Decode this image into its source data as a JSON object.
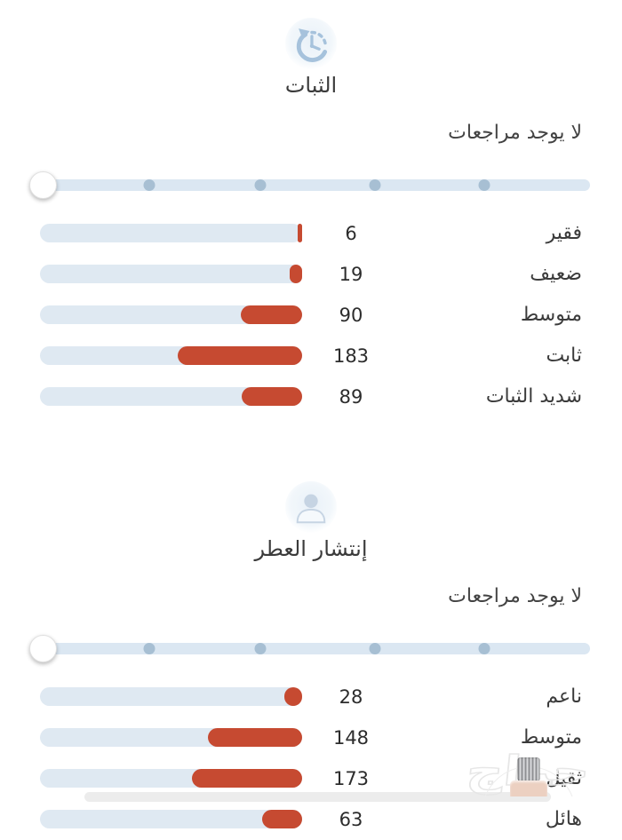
{
  "colors": {
    "bar_fill": "#c64a31",
    "bar_track": "#dfe9f2",
    "slider_track": "#dbe7f2",
    "slider_dot": "#a7bfd3",
    "icon_blue": "#a6c2dc"
  },
  "sections": [
    {
      "title": "الثبات",
      "icon": "history-clock-icon",
      "no_reviews": "لا يوجد مراجعات",
      "rows": [
        {
          "label": "فقير",
          "value": 6
        },
        {
          "label": "ضعيف",
          "value": 19
        },
        {
          "label": "متوسط",
          "value": 90
        },
        {
          "label": "ثابت",
          "value": 183
        },
        {
          "label": "شديد الثبات",
          "value": 89
        }
      ]
    },
    {
      "title": "إنتشار العطر",
      "icon": "person-icon",
      "no_reviews": "لا يوجد مراجعات",
      "rows": [
        {
          "label": "ناعم",
          "value": 28
        },
        {
          "label": "متوسط",
          "value": 148
        },
        {
          "label": "ثقيل",
          "value": 173
        },
        {
          "label": "هائل",
          "value": 63
        }
      ]
    }
  ],
  "watermark": {
    "text": "حراج"
  },
  "chart_data": [
    {
      "type": "bar",
      "title": "الثبات",
      "categories": [
        "فقير",
        "ضعيف",
        "متوسط",
        "ثابت",
        "شديد الثبات"
      ],
      "values": [
        6,
        19,
        90,
        183,
        89
      ],
      "orientation": "horizontal-rtl",
      "note": "fill width proportional to value / section total (387)"
    },
    {
      "type": "bar",
      "title": "إنتشار العطر",
      "categories": [
        "ناعم",
        "متوسط",
        "ثقيل",
        "هائل"
      ],
      "values": [
        28,
        148,
        173,
        63
      ],
      "orientation": "horizontal-rtl",
      "note": "fill width proportional to value / section total (412)"
    }
  ]
}
